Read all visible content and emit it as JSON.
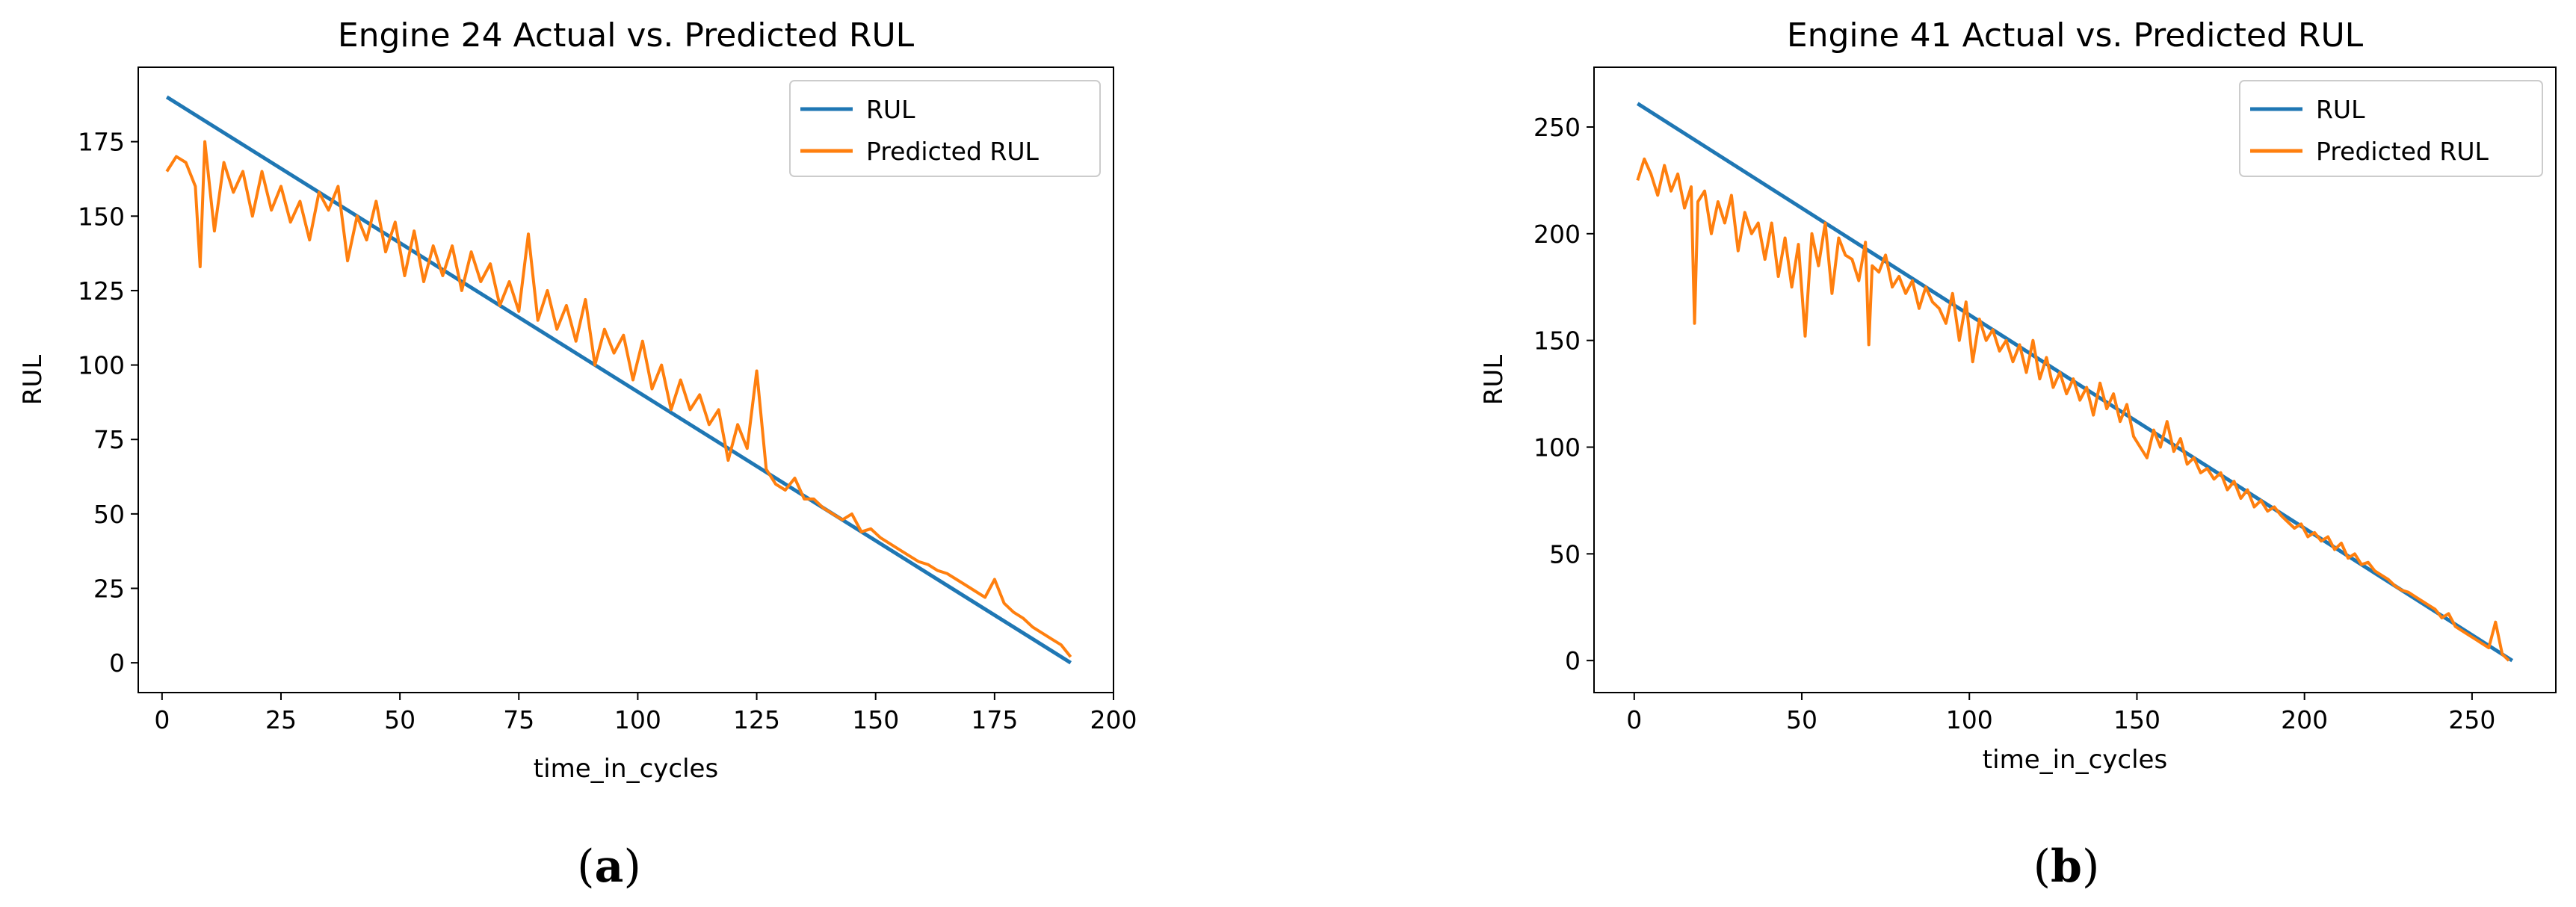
{
  "chart_data": [
    {
      "type": "line",
      "title": "Engine 24 Actual vs. Predicted RUL",
      "xlabel": "time_in_cycles",
      "ylabel": "RUL",
      "xlim": [
        -5,
        200
      ],
      "ylim": [
        -10,
        200
      ],
      "xticks": [
        0,
        25,
        50,
        75,
        100,
        125,
        150,
        175,
        200
      ],
      "yticks": [
        0,
        25,
        50,
        75,
        100,
        125,
        150,
        175
      ],
      "xtick_labels": [
        "0",
        "25",
        "50",
        "75",
        "100",
        "125",
        "150",
        "175",
        "200"
      ],
      "ytick_labels": [
        "0",
        "25",
        "50",
        "75",
        "100",
        "125",
        "150",
        "175"
      ],
      "legend": "top-right",
      "grid": false,
      "series": [
        {
          "name": "RUL",
          "color": "#1f77b4",
          "x": [
            1,
            191
          ],
          "y": [
            190,
            0
          ]
        },
        {
          "name": "Predicted RUL",
          "color": "#ff7f0e",
          "x": [
            1,
            3,
            5,
            7,
            8,
            9,
            11,
            13,
            15,
            17,
            19,
            21,
            23,
            25,
            27,
            29,
            31,
            33,
            35,
            37,
            39,
            41,
            43,
            45,
            47,
            49,
            51,
            53,
            55,
            57,
            59,
            61,
            63,
            65,
            67,
            69,
            71,
            73,
            75,
            77,
            79,
            81,
            83,
            85,
            87,
            89,
            91,
            93,
            95,
            97,
            99,
            101,
            103,
            105,
            107,
            109,
            111,
            113,
            115,
            117,
            119,
            121,
            123,
            125,
            127,
            129,
            131,
            133,
            135,
            137,
            139,
            141,
            143,
            145,
            147,
            149,
            151,
            153,
            155,
            157,
            159,
            161,
            163,
            165,
            167,
            169,
            171,
            173,
            175,
            177,
            179,
            181,
            183,
            185,
            187,
            189,
            191
          ],
          "y": [
            165,
            170,
            168,
            160,
            133,
            175,
            145,
            168,
            158,
            165,
            150,
            165,
            152,
            160,
            148,
            155,
            142,
            158,
            152,
            160,
            135,
            150,
            142,
            155,
            138,
            148,
            130,
            145,
            128,
            140,
            130,
            140,
            125,
            138,
            128,
            134,
            120,
            128,
            118,
            144,
            115,
            125,
            112,
            120,
            108,
            122,
            100,
            112,
            104,
            110,
            95,
            108,
            92,
            100,
            85,
            95,
            85,
            90,
            80,
            85,
            68,
            80,
            72,
            98,
            65,
            60,
            58,
            62,
            55,
            55,
            52,
            50,
            48,
            50,
            44,
            45,
            42,
            40,
            38,
            36,
            34,
            33,
            31,
            30,
            28,
            26,
            24,
            22,
            28,
            20,
            17,
            15,
            12,
            10,
            8,
            6,
            2
          ]
        }
      ],
      "caption": "a"
    },
    {
      "type": "line",
      "title": "Engine 41 Actual vs. Predicted RUL",
      "xlabel": "time_in_cycles",
      "ylabel": "RUL",
      "xlim": [
        -12,
        275
      ],
      "ylim": [
        -15,
        278
      ],
      "xticks": [
        0,
        50,
        100,
        150,
        200,
        250
      ],
      "yticks": [
        0,
        50,
        100,
        150,
        200,
        250
      ],
      "xtick_labels": [
        "0",
        "50",
        "100",
        "150",
        "200",
        "250"
      ],
      "ytick_labels": [
        "0",
        "50",
        "100",
        "150",
        "200",
        "250"
      ],
      "legend": "top-right",
      "grid": false,
      "series": [
        {
          "name": "RUL",
          "color": "#1f77b4",
          "x": [
            1,
            262
          ],
          "y": [
            261,
            0
          ]
        },
        {
          "name": "Predicted RUL",
          "color": "#ff7f0e",
          "x": [
            1,
            3,
            5,
            7,
            9,
            11,
            13,
            15,
            17,
            18,
            19,
            21,
            23,
            25,
            27,
            29,
            31,
            33,
            35,
            37,
            39,
            41,
            43,
            45,
            47,
            49,
            51,
            53,
            55,
            57,
            59,
            61,
            63,
            65,
            67,
            69,
            70,
            71,
            73,
            75,
            77,
            79,
            81,
            83,
            85,
            87,
            89,
            91,
            93,
            95,
            97,
            99,
            101,
            103,
            105,
            107,
            109,
            111,
            113,
            115,
            117,
            119,
            121,
            123,
            125,
            127,
            129,
            131,
            133,
            135,
            137,
            139,
            141,
            143,
            145,
            147,
            149,
            151,
            153,
            155,
            157,
            159,
            161,
            163,
            165,
            167,
            169,
            171,
            173,
            175,
            177,
            179,
            181,
            183,
            185,
            187,
            189,
            191,
            193,
            195,
            197,
            199,
            201,
            203,
            205,
            207,
            209,
            211,
            213,
            215,
            217,
            219,
            221,
            223,
            225,
            227,
            229,
            231,
            233,
            235,
            237,
            239,
            241,
            243,
            245,
            247,
            249,
            251,
            253,
            255,
            257,
            259,
            261
          ],
          "y": [
            225,
            235,
            228,
            218,
            232,
            220,
            228,
            212,
            222,
            158,
            215,
            220,
            200,
            215,
            205,
            218,
            192,
            210,
            200,
            205,
            188,
            205,
            180,
            198,
            175,
            195,
            152,
            200,
            185,
            205,
            172,
            198,
            190,
            188,
            178,
            196,
            148,
            185,
            182,
            190,
            175,
            180,
            172,
            178,
            165,
            175,
            168,
            165,
            158,
            172,
            150,
            168,
            140,
            160,
            150,
            155,
            145,
            150,
            140,
            148,
            135,
            150,
            132,
            142,
            128,
            135,
            125,
            132,
            122,
            128,
            115,
            130,
            118,
            125,
            112,
            120,
            105,
            100,
            95,
            108,
            100,
            112,
            98,
            104,
            92,
            95,
            88,
            90,
            85,
            88,
            80,
            84,
            76,
            80,
            72,
            75,
            70,
            72,
            68,
            65,
            62,
            64,
            58,
            60,
            56,
            58,
            52,
            55,
            48,
            50,
            45,
            46,
            42,
            40,
            38,
            35,
            33,
            32,
            30,
            28,
            26,
            24,
            20,
            22,
            16,
            14,
            12,
            10,
            8,
            6,
            18,
            3,
            0
          ]
        }
      ],
      "caption": "b"
    }
  ]
}
